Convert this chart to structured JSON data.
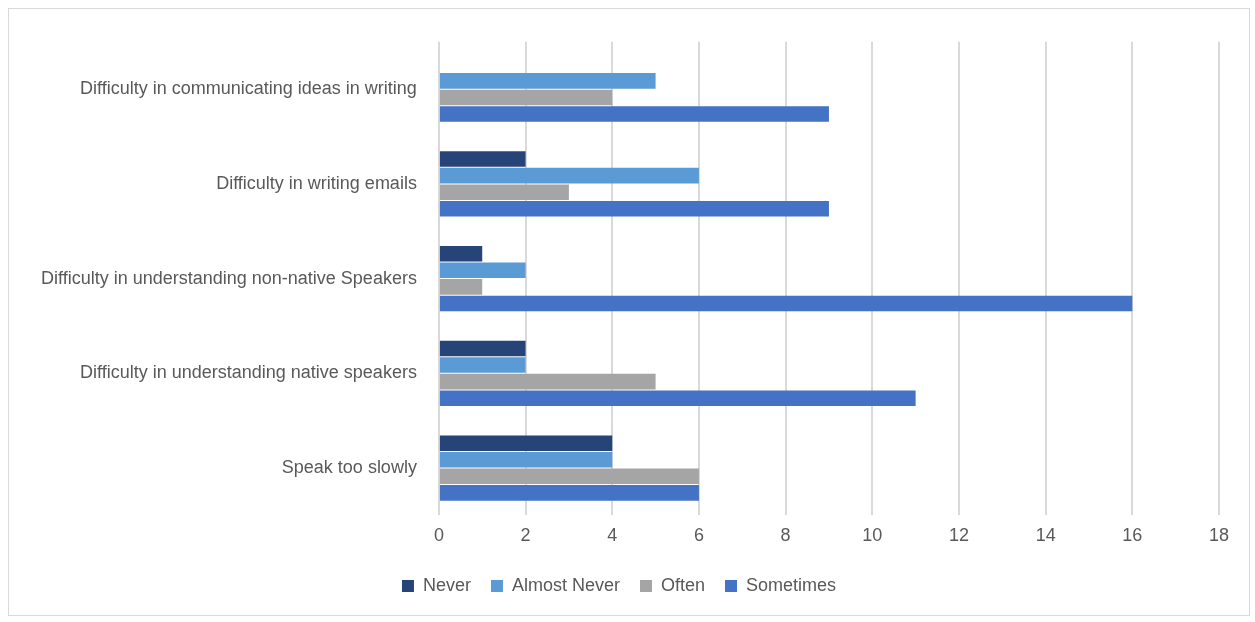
{
  "chart_data": {
    "type": "bar",
    "orientation": "horizontal",
    "categories": [
      "Difficulty in communicating ideas in writing",
      "Difficulty in writing emails",
      "Difficulty in understanding non-native Speakers",
      "Difficulty in understanding native speakers",
      "Speak too slowly"
    ],
    "series": [
      {
        "name": "Never",
        "color": "#264478",
        "values": [
          0,
          2,
          1,
          2,
          4
        ]
      },
      {
        "name": "Almost Never",
        "color": "#5b9bd5",
        "values": [
          5,
          6,
          2,
          2,
          4
        ]
      },
      {
        "name": "Often",
        "color": "#a5a5a5",
        "values": [
          4,
          3,
          1,
          5,
          6
        ]
      },
      {
        "name": "Sometimes",
        "color": "#4472c4",
        "values": [
          9,
          9,
          16,
          11,
          6
        ]
      }
    ],
    "xlim": [
      0,
      18
    ],
    "xticks": [
      0,
      2,
      4,
      6,
      8,
      10,
      12,
      14,
      16,
      18
    ],
    "grid": "x",
    "legend": "bottom"
  }
}
